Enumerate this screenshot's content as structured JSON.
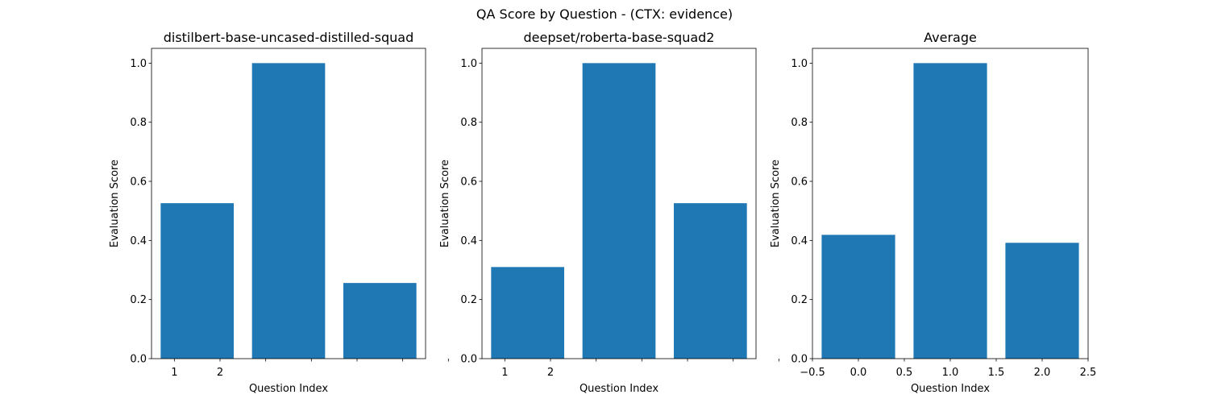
{
  "figure": {
    "title": "QA Score by Question - (CTX: evidence)"
  },
  "chart_data": [
    {
      "type": "bar",
      "title": "distilbert-base-uncased-distilled-squad",
      "xlabel": "Question Index",
      "ylabel": "Evaluation Score",
      "x": [
        0,
        1,
        2
      ],
      "values": [
        0.526,
        1.0,
        0.256
      ],
      "xlim": [
        -0.5,
        2.5
      ],
      "ylim": [
        0,
        1.05
      ],
      "yticks": [
        0.0,
        0.2,
        0.4,
        0.6,
        0.8,
        1.0
      ],
      "ytick_labels": [
        "0.0",
        "0.2",
        "0.4",
        "0.6",
        "0.8",
        "1.0"
      ],
      "xticks": [
        -0.25,
        0.25,
        0.75,
        1.25,
        1.75,
        2.25,
        2.75
      ],
      "xtick_labels": [
        "1",
        "2",
        "",
        "",
        "",
        "",
        ""
      ],
      "bar_color": "#1f77b4",
      "grid": false
    },
    {
      "type": "bar",
      "title": "deepset/roberta-base-squad2",
      "xlabel": "Question Index",
      "ylabel": "Evaluation Score",
      "x": [
        0,
        1,
        2
      ],
      "values": [
        0.31,
        1.0,
        0.526
      ],
      "xlim": [
        -0.5,
        2.5
      ],
      "ylim": [
        0,
        1.05
      ],
      "yticks": [
        0.0,
        0.2,
        0.4,
        0.6,
        0.8,
        1.0
      ],
      "ytick_labels": [
        "0.0",
        "0.2",
        "0.4",
        "0.6",
        "0.8",
        "1.0"
      ],
      "xticks": [
        -0.25,
        0.25,
        0.75,
        1.25,
        1.75,
        2.25,
        2.75
      ],
      "xtick_labels": [
        "1",
        "2",
        "",
        "",
        "",
        "",
        ""
      ],
      "bar_color": "#1f77b4",
      "grid": false
    },
    {
      "type": "bar",
      "title": "Average",
      "xlabel": "Question Index",
      "ylabel": "Evaluation Score",
      "x": [
        0,
        1,
        2
      ],
      "values": [
        0.419,
        1.0,
        0.392
      ],
      "xlim": [
        -0.5,
        2.5
      ],
      "ylim": [
        0,
        1.05
      ],
      "yticks": [
        0.0,
        0.2,
        0.4,
        0.6,
        0.8,
        1.0
      ],
      "ytick_labels": [
        "0.0",
        "0.2",
        "0.4",
        "0.6",
        "0.8",
        "1.0"
      ],
      "xticks": [
        -0.5,
        0.0,
        0.5,
        1.0,
        1.5,
        2.0,
        2.5
      ],
      "xtick_labels": [
        "−0.5",
        "0.0",
        "0.5",
        "1.0",
        "1.5",
        "2.0",
        "2.5"
      ],
      "bar_color": "#1f77b4",
      "grid": false
    }
  ]
}
